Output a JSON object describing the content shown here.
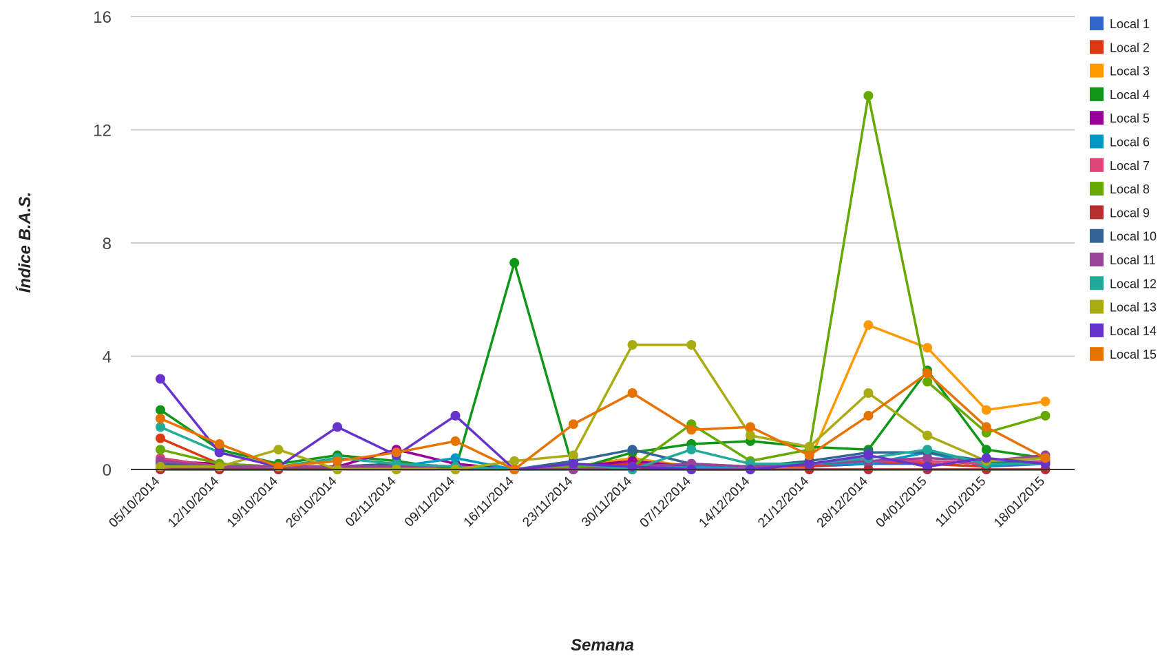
{
  "chart_data": {
    "type": "line",
    "title": "",
    "xlabel": "Semana",
    "ylabel": "Índice B.A.S.",
    "ylim": [
      0,
      16
    ],
    "yticks": [
      0,
      4,
      8,
      12,
      16
    ],
    "grid": true,
    "legend_position": "right",
    "categories": [
      "05/10/2014",
      "12/10/2014",
      "19/10/2014",
      "26/10/2014",
      "02/11/2014",
      "09/11/2014",
      "16/11/2014",
      "23/11/2014",
      "30/11/2014",
      "07/12/2014",
      "14/12/2014",
      "21/12/2014",
      "28/12/2014",
      "04/01/2015",
      "11/01/2015",
      "18/01/2015"
    ],
    "series": [
      {
        "name": "Local 1",
        "color": "#3366cc",
        "values": [
          0.2,
          0.05,
          0.0,
          0.1,
          0.1,
          0.1,
          0.0,
          0.1,
          0.1,
          0.1,
          0.1,
          0.1,
          0.2,
          0.2,
          0.1,
          0.2
        ]
      },
      {
        "name": "Local 2",
        "color": "#dc3912",
        "values": [
          1.1,
          0.2,
          0.1,
          0.1,
          0.2,
          0.1,
          0.0,
          0.1,
          0.2,
          0.1,
          0.1,
          0.1,
          0.3,
          0.2,
          0.1,
          0.3
        ]
      },
      {
        "name": "Local 3",
        "color": "#ff9900",
        "values": [
          0.1,
          0.1,
          0.1,
          0.1,
          0.1,
          0.1,
          0.0,
          0.1,
          0.4,
          0.1,
          0.1,
          0.3,
          5.1,
          4.3,
          2.1,
          2.4
        ]
      },
      {
        "name": "Local 4",
        "color": "#109618",
        "values": [
          2.1,
          0.7,
          0.2,
          0.5,
          0.3,
          0.0,
          7.3,
          0.0,
          0.6,
          0.9,
          1.0,
          0.8,
          0.7,
          3.5,
          0.7,
          0.4
        ]
      },
      {
        "name": "Local 5",
        "color": "#990099",
        "values": [
          0.3,
          0.2,
          0.1,
          0.1,
          0.7,
          0.2,
          0.0,
          0.1,
          0.3,
          0.1,
          0.1,
          0.2,
          0.3,
          0.3,
          0.2,
          0.3
        ]
      },
      {
        "name": "Local 6",
        "color": "#0099c6",
        "values": [
          0.1,
          0.0,
          0.0,
          0.1,
          0.1,
          0.4,
          0.0,
          0.2,
          0.0,
          0.1,
          0.1,
          0.2,
          0.2,
          0.6,
          0.1,
          0.3
        ]
      },
      {
        "name": "Local 7",
        "color": "#dd4477",
        "values": [
          0.4,
          0.1,
          0.1,
          0.1,
          0.2,
          0.1,
          0.0,
          0.1,
          0.1,
          0.2,
          0.1,
          0.2,
          0.3,
          0.3,
          0.2,
          0.3
        ]
      },
      {
        "name": "Local 8",
        "color": "#66aa00",
        "values": [
          0.7,
          0.2,
          0.1,
          0.1,
          0.1,
          0.1,
          0.0,
          0.1,
          0.1,
          1.6,
          0.3,
          0.7,
          13.2,
          3.1,
          1.3,
          1.9
        ]
      },
      {
        "name": "Local 9",
        "color": "#b82e2e",
        "values": [
          0.0,
          0.0,
          0.0,
          0.0,
          0.0,
          0.0,
          0.0,
          0.0,
          0.0,
          0.0,
          0.0,
          0.0,
          0.0,
          0.0,
          0.0,
          0.0
        ]
      },
      {
        "name": "Local 10",
        "color": "#316395",
        "values": [
          0.2,
          0.1,
          0.1,
          0.1,
          0.2,
          0.1,
          0.0,
          0.3,
          0.7,
          0.2,
          0.1,
          0.3,
          0.6,
          0.6,
          0.3,
          0.2
        ]
      },
      {
        "name": "Local 11",
        "color": "#994499",
        "values": [
          0.3,
          0.1,
          0.1,
          0.1,
          0.1,
          0.1,
          0.0,
          0.0,
          0.1,
          0.2,
          0.1,
          0.2,
          0.3,
          0.4,
          0.3,
          0.5
        ]
      },
      {
        "name": "Local 12",
        "color": "#22aa99",
        "values": [
          1.5,
          0.6,
          0.1,
          0.4,
          0.2,
          0.1,
          0.0,
          0.2,
          0.0,
          0.7,
          0.2,
          0.2,
          0.4,
          0.7,
          0.2,
          0.2
        ]
      },
      {
        "name": "Local 13",
        "color": "#aaaa11",
        "values": [
          0.1,
          0.1,
          0.7,
          0.0,
          0.0,
          0.0,
          0.3,
          0.5,
          4.4,
          4.4,
          1.2,
          0.8,
          2.7,
          1.2,
          0.3,
          0.4
        ]
      },
      {
        "name": "Local 14",
        "color": "#6633cc",
        "values": [
          3.2,
          0.6,
          0.1,
          1.5,
          0.5,
          1.9,
          0.0,
          0.2,
          0.1,
          0.0,
          0.0,
          0.2,
          0.5,
          0.1,
          0.4,
          0.2
        ]
      },
      {
        "name": "Local 15",
        "color": "#e67300",
        "values": [
          1.8,
          0.9,
          0.1,
          0.3,
          0.6,
          1.0,
          0.0,
          1.6,
          2.7,
          1.4,
          1.5,
          0.5,
          1.9,
          3.4,
          1.5,
          0.4
        ]
      }
    ]
  }
}
